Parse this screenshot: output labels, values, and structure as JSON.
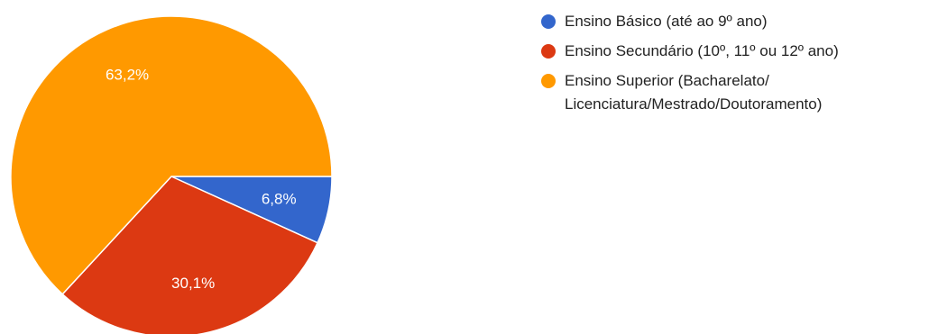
{
  "chart_data": {
    "type": "pie",
    "title": "",
    "slices": [
      {
        "label": "Ensino Básico (até ao 9º ano)",
        "value": 6.8,
        "display": "6,8%",
        "color": "#3366cc"
      },
      {
        "label": "Ensino Secundário (10º, 11º ou 12º ano)",
        "value": 30.1,
        "display": "30,1%",
        "color": "#dc3912"
      },
      {
        "label": "Ensino Superior (Bacharelato/ Licenciatura/Mestrado/Doutoramento)",
        "value": 63.2,
        "display": "63,2%",
        "color": "#ff9900"
      }
    ],
    "start_angle": "3 o'clock, clockwise",
    "legend_position": "right"
  }
}
